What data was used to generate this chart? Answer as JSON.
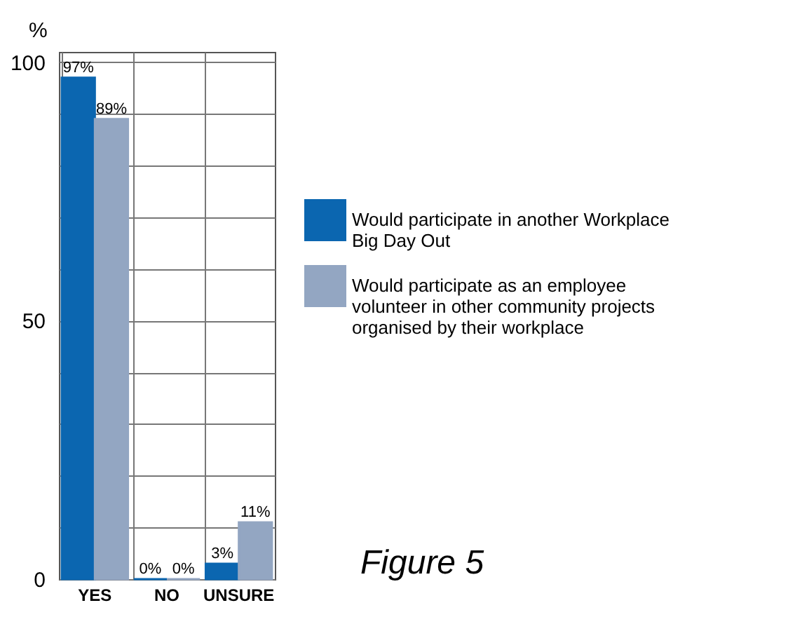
{
  "chart_data": {
    "type": "bar",
    "ylabel": "%",
    "categories": [
      "YES",
      "NO",
      "UNSURE"
    ],
    "series": [
      {
        "name": "Would participate in another Workplace Big Day Out",
        "color": "#0b66b0",
        "values": [
          97,
          0,
          3
        ],
        "value_labels": [
          "97%",
          "0%",
          "3%"
        ]
      },
      {
        "name": "Would participate as an employee volunteer in other community projects organised by their workplace",
        "color": "#93a6c2",
        "values": [
          89,
          0,
          11
        ],
        "value_labels": [
          "89%",
          "0%",
          "11%"
        ]
      }
    ],
    "ylim": [
      0,
      102
    ],
    "yticks": [
      0,
      {
        "value": 10,
        "label": null
      },
      {
        "value": 20,
        "label": null
      },
      {
        "value": 30,
        "label": null
      },
      {
        "value": 40,
        "label": null
      },
      50,
      {
        "value": 60,
        "label": null
      },
      {
        "value": 70,
        "label": null
      },
      {
        "value": 80,
        "label": null
      },
      {
        "value": 90,
        "label": null
      },
      100
    ],
    "grid": true,
    "legend": "right",
    "annotations": [
      "Figure 5"
    ]
  }
}
